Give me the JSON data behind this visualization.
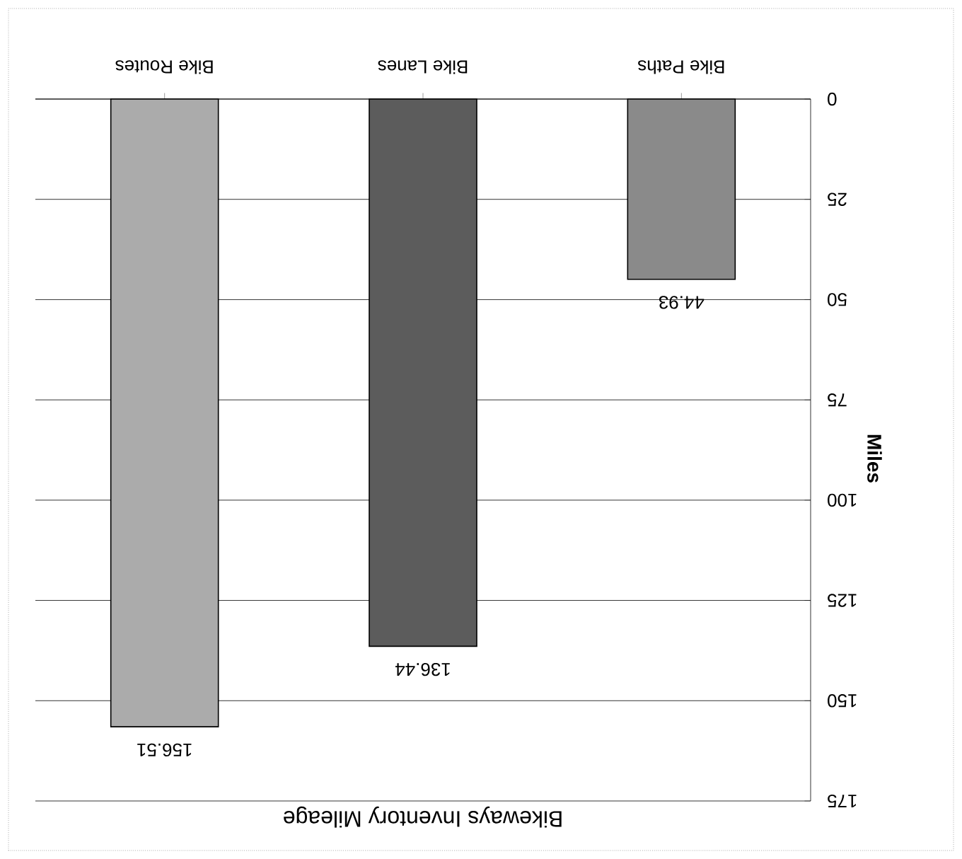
{
  "chart_data": {
    "type": "bar",
    "title": "Bikeways Inventory Mileage",
    "ylabel": "Miles",
    "categories": [
      "Bike Routes",
      "Bike Lanes",
      "Bike Paths"
    ],
    "values": [
      156.51,
      136.44,
      44.93
    ],
    "colors": [
      "#ababab",
      "#5c5c5c",
      "#8a8a8a"
    ],
    "ylim": [
      175,
      0
    ],
    "yticks": [
      0,
      25,
      50,
      75,
      100,
      125,
      150,
      175
    ],
    "grid": "y",
    "data_labels": true
  }
}
